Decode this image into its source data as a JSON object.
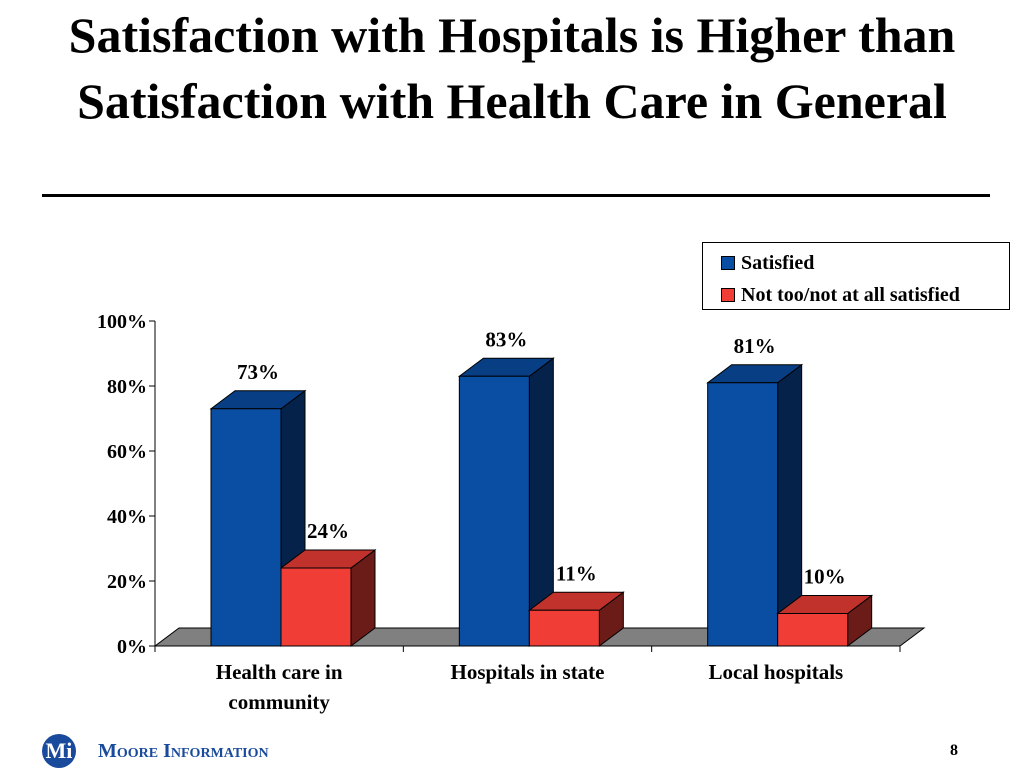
{
  "slide": {
    "title": "Satisfaction with Hospitals is Higher than Satisfaction with Health Care in General",
    "page_number": "8"
  },
  "footer": {
    "logo_text": "Mi",
    "company": "Moore Information"
  },
  "colors": {
    "satisfied": "#0a4ea4",
    "not_satisfied": "#f03e36"
  },
  "chart_data": {
    "type": "bar",
    "categories": [
      "Health care in community",
      "Hospitals in state",
      "Local hospitals"
    ],
    "series": [
      {
        "name": "Satisfied",
        "values": [
          73,
          83,
          81
        ],
        "labels": [
          "73%",
          "83%",
          "81%"
        ]
      },
      {
        "name": "Not too/not at all satisfied",
        "values": [
          24,
          11,
          10
        ],
        "labels": [
          "24%",
          "11%",
          "10%"
        ]
      }
    ],
    "ylim": [
      0,
      100
    ],
    "yticks": [
      "0%",
      "20%",
      "40%",
      "60%",
      "80%",
      "100%"
    ],
    "legend_position": "top-right",
    "grid": false
  }
}
